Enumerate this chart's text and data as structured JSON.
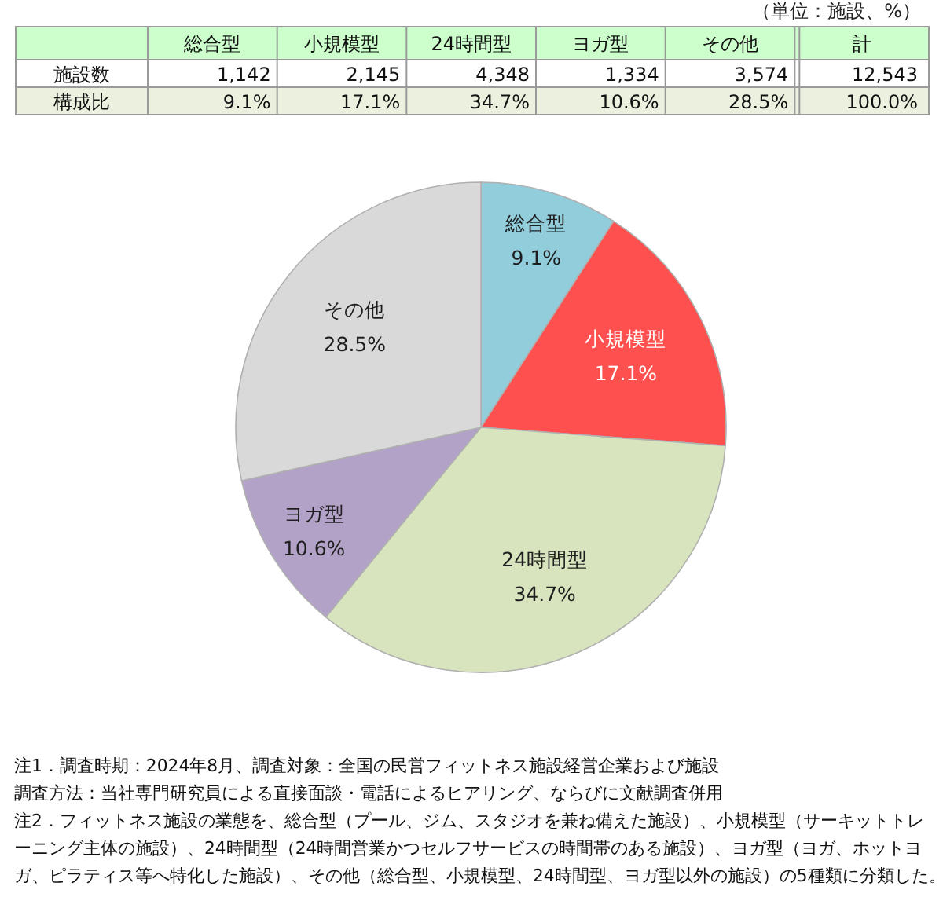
{
  "chart_data": [
    {
      "type": "other",
      "categories": [
        "総合型",
        "小規模型",
        "24時間型",
        "ヨガ型",
        "その他",
        "計"
      ],
      "series": [
        {
          "name": "施設数",
          "values": [
            1142,
            2145,
            4348,
            1334,
            3574,
            12543
          ],
          "value_labels": [
            "1,142",
            "2,145",
            "4,348",
            "1,334",
            "3,574",
            "12,543"
          ]
        },
        {
          "name": "構成比",
          "values": [
            9.1,
            17.1,
            34.7,
            10.6,
            28.5,
            100.0
          ],
          "value_labels": [
            "9.1%",
            "17.1%",
            "34.7%",
            "10.6%",
            "28.5%",
            "100.0%"
          ]
        }
      ],
      "annotations": [
        "（単位：施設、%）"
      ]
    },
    {
      "type": "pie",
      "categories": [
        "総合型",
        "小規模型",
        "24時間型",
        "ヨガ型",
        "その他"
      ],
      "values": [
        9.1,
        17.1,
        34.7,
        10.6,
        28.5
      ],
      "value_labels": [
        "9.1%",
        "17.1%",
        "34.7%",
        "10.6%",
        "28.5%"
      ],
      "colors": [
        "#92cddc",
        "#ff5050",
        "#d7e4bd",
        "#b3a2c7",
        "#d9d9d9"
      ],
      "annotations": [
        "注1．調査時期：2024年8月、調査対象：全国の民営フィットネス施設経営企業および施設",
        "調査方法：当社専門研究員による直接面談・電話によるヒアリング、ならびに文献調査併用",
        "注2．フィットネス施設の業態を、総合型（プール、ジム、スタジオを兼ね備えた施設）、小規模型（サーキットトレーニング主体の施設）、24時間型（24時間営業かつセルフサービスの時間帯のある施設）、ヨガ型（ヨガ、ホットヨガ、ピラティス等へ特化した施設）、その他（総合型、小規模型、24時間型、ヨガ型以外の施設）の5種類に分類した。"
      ]
    }
  ]
}
